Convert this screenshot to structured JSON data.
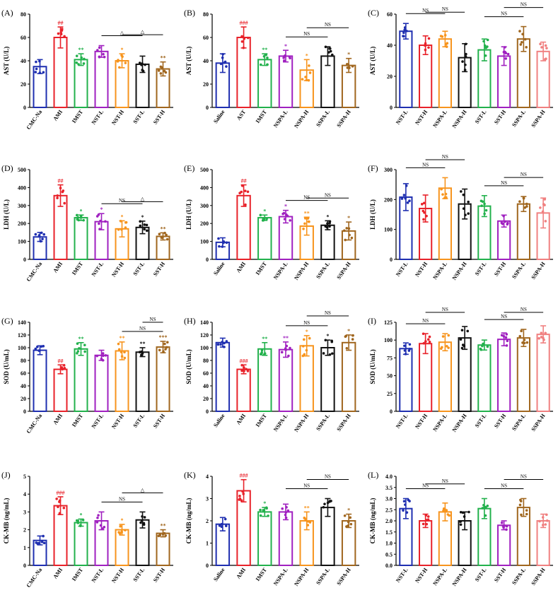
{
  "colors": {
    "blue": "#1f2fb0",
    "red": "#e8222a",
    "green": "#22b14c",
    "purple": "#a020c0",
    "orange": "#f7941d",
    "black": "#111111",
    "brown": "#a0661e",
    "pink": "#f08080"
  },
  "chart_data": [
    {
      "id": "A",
      "type": "bar",
      "label": "(A)",
      "ylabel": "AST (U/L)",
      "ylim": [
        0,
        80
      ],
      "yticks": [
        0,
        20,
        40,
        60,
        80
      ],
      "categories": [
        "CMC-Na",
        "AMI",
        "IMST",
        "NST-L",
        "NST-H",
        "SST-L",
        "SST-H"
      ],
      "colors": [
        "blue",
        "red",
        "green",
        "purple",
        "orange",
        "black",
        "brown"
      ],
      "values": [
        35,
        60,
        41,
        48,
        40,
        37,
        33
      ],
      "errors": [
        6,
        9,
        5,
        5,
        6,
        7,
        6
      ],
      "sig": [
        "",
        "##",
        "**",
        "",
        "*",
        "",
        "**"
      ],
      "brackets": [
        {
          "from": 4,
          "to": 6,
          "text": "△",
          "level": 1
        },
        {
          "from": 3,
          "to": 5,
          "text": "△",
          "level": 0
        }
      ]
    },
    {
      "id": "B",
      "type": "bar",
      "label": "(B)",
      "ylabel": "AST (U/L)",
      "ylim": [
        0,
        80
      ],
      "yticks": [
        0,
        20,
        40,
        60,
        80
      ],
      "categories": [
        "Saline",
        "AST",
        "IMST",
        "NSPA-L",
        "NSPA-H",
        "SSPA-L",
        "SSPA-H"
      ],
      "colors": [
        "blue",
        "red",
        "green",
        "purple",
        "orange",
        "black",
        "brown"
      ],
      "values": [
        38,
        60,
        41,
        44,
        32,
        44,
        36
      ],
      "errors": [
        8,
        9,
        5,
        5,
        9,
        8,
        6
      ],
      "sig": [
        "",
        "###",
        "**",
        "*",
        "*",
        "",
        "*"
      ],
      "brackets": [
        {
          "from": 3,
          "to": 5,
          "text": "NS",
          "level": 0
        },
        {
          "from": 4,
          "to": 6,
          "text": "NS",
          "level": 1
        }
      ]
    },
    {
      "id": "C",
      "type": "bar",
      "label": "(C)",
      "ylabel": "AST (U/L)",
      "ylim": [
        0,
        60
      ],
      "yticks": [
        0,
        20,
        40,
        60
      ],
      "categories": [
        "NST-L",
        "NST-H",
        "NSPA-L",
        "NSPA-H",
        "SST-L",
        "SST-H",
        "SSPA-L",
        "SSPA-H"
      ],
      "colors": [
        "blue",
        "red",
        "orange",
        "black",
        "green",
        "purple",
        "brown",
        "pink"
      ],
      "values": [
        49,
        40,
        44,
        32,
        37,
        33,
        44,
        36
      ],
      "errors": [
        5,
        6,
        5,
        9,
        7,
        6,
        8,
        6
      ],
      "sig": [
        "",
        "",
        "",
        "",
        "",
        "",
        "",
        ""
      ],
      "brackets": [
        {
          "from": 0,
          "to": 2,
          "text": "NS",
          "level": 0
        },
        {
          "from": 1,
          "to": 3,
          "text": "NS",
          "level": 1
        },
        {
          "from": 4,
          "to": 6,
          "text": "NS",
          "level": 0
        },
        {
          "from": 5,
          "to": 7,
          "text": "NS",
          "level": 1
        }
      ]
    },
    {
      "id": "D",
      "type": "bar",
      "label": "(D)",
      "ylabel": "LDH (U/L)",
      "ylim": [
        0,
        500
      ],
      "yticks": [
        0,
        100,
        200,
        300,
        400,
        500
      ],
      "categories": [
        "CMC-Na",
        "AMI",
        "IMST",
        "NST-L",
        "NST-H",
        "SST-L",
        "SST-H"
      ],
      "colors": [
        "blue",
        "red",
        "green",
        "purple",
        "orange",
        "black",
        "brown"
      ],
      "values": [
        125,
        355,
        232,
        210,
        170,
        178,
        128
      ],
      "errors": [
        25,
        60,
        15,
        45,
        45,
        35,
        20
      ],
      "sig": [
        "",
        "##",
        "*",
        "*",
        "*",
        "*",
        "**"
      ],
      "brackets": [
        {
          "from": 3,
          "to": 5,
          "text": "NS",
          "level": 0
        },
        {
          "from": 4,
          "to": 6,
          "text": "△",
          "level": 1
        }
      ]
    },
    {
      "id": "E",
      "type": "bar",
      "label": "(E)",
      "ylabel": "LDH (U/L)",
      "ylim": [
        0,
        500
      ],
      "yticks": [
        0,
        100,
        200,
        300,
        400,
        500
      ],
      "categories": [
        "Saline",
        "AMI",
        "IMST",
        "NSPA-L",
        "NSPA-H",
        "SSPA-L",
        "SSPA-H"
      ],
      "colors": [
        "blue",
        "red",
        "green",
        "purple",
        "orange",
        "black",
        "brown"
      ],
      "values": [
        95,
        355,
        232,
        238,
        185,
        190,
        158
      ],
      "errors": [
        25,
        60,
        15,
        35,
        50,
        25,
        50
      ],
      "sig": [
        "",
        "##",
        "*",
        "*",
        "**",
        "*",
        "*"
      ],
      "brackets": [
        {
          "from": 3,
          "to": 5,
          "text": "NS",
          "level": 0
        },
        {
          "from": 4,
          "to": 6,
          "text": "NS",
          "level": 1
        }
      ]
    },
    {
      "id": "F",
      "type": "bar",
      "label": "(F)",
      "ylabel": "LDH (U/L)",
      "ylim": [
        0,
        300
      ],
      "yticks": [
        0,
        100,
        200,
        300
      ],
      "categories": [
        "NST-L",
        "NST-H",
        "NSPA-L",
        "NSPA-H",
        "SST-L",
        "SST-H",
        "SSPA-L",
        "SSPA-H"
      ],
      "colors": [
        "blue",
        "red",
        "orange",
        "black",
        "green",
        "purple",
        "brown",
        "pink"
      ],
      "values": [
        208,
        170,
        238,
        185,
        178,
        128,
        185,
        155
      ],
      "errors": [
        45,
        45,
        35,
        50,
        35,
        20,
        25,
        50
      ],
      "sig": [
        "",
        "",
        "",
        "",
        "",
        "",
        "",
        ""
      ],
      "brackets": [
        {
          "from": 0,
          "to": 2,
          "text": "NS",
          "level": 0
        },
        {
          "from": 1,
          "to": 3,
          "text": "NS",
          "level": 1
        },
        {
          "from": 4,
          "to": 6,
          "text": "NS",
          "level": 0
        },
        {
          "from": 5,
          "to": 7,
          "text": "NS",
          "level": 1
        }
      ]
    },
    {
      "id": "G",
      "type": "bar",
      "label": "(G)",
      "ylabel": "SOD (U/mL)",
      "ylim": [
        0,
        140
      ],
      "yticks": [
        0,
        20,
        40,
        60,
        80,
        100,
        120,
        140
      ],
      "categories": [
        "CMC-Na",
        "AMI",
        "IMST",
        "NST-L",
        "NST-H",
        "SST-L",
        "SST-H"
      ],
      "colors": [
        "blue",
        "red",
        "green",
        "purple",
        "orange",
        "black",
        "brown"
      ],
      "values": [
        96,
        66,
        98,
        88,
        95,
        93,
        101
      ],
      "errors": [
        7,
        7,
        10,
        8,
        14,
        7,
        9
      ],
      "sig": [
        "",
        "##",
        "**",
        "",
        "**",
        "**",
        "***"
      ],
      "brackets": [
        {
          "from": 4,
          "to": 6,
          "text": "NS",
          "level": 0
        },
        {
          "from": 5,
          "to": 6,
          "text": "NS",
          "level": 1
        }
      ]
    },
    {
      "id": "H",
      "type": "bar",
      "label": "(H)",
      "ylabel": "SOD (U/mL)",
      "ylim": [
        0,
        140
      ],
      "yticks": [
        0,
        20,
        40,
        60,
        80,
        100,
        120,
        140
      ],
      "categories": [
        "Saline",
        "AMI",
        "IMST",
        "NSPA-L",
        "NSPA-H",
        "SSPA-L",
        "SSPA-H"
      ],
      "colors": [
        "blue",
        "red",
        "green",
        "purple",
        "orange",
        "black",
        "brown"
      ],
      "values": [
        108,
        66,
        98,
        97,
        103,
        100,
        108
      ],
      "errors": [
        7,
        7,
        10,
        12,
        16,
        12,
        12
      ],
      "sig": [
        "",
        "###",
        "**",
        "**",
        "*",
        "*",
        "*"
      ],
      "brackets": [
        {
          "from": 3,
          "to": 5,
          "text": "NS",
          "level": 0
        },
        {
          "from": 4,
          "to": 6,
          "text": "NS",
          "level": 1
        }
      ]
    },
    {
      "id": "I",
      "type": "bar",
      "label": "(I)",
      "ylabel": "SOD (U/mL)",
      "ylim": [
        0,
        125
      ],
      "yticks": [
        0,
        25,
        50,
        75,
        100,
        125
      ],
      "categories": [
        "NST-L",
        "NST-H",
        "NSPA-L",
        "NSPA-H",
        "SST-L",
        "SST-H",
        "SSPA-L",
        "SSPA-H"
      ],
      "colors": [
        "blue",
        "red",
        "orange",
        "black",
        "green",
        "purple",
        "brown",
        "pink"
      ],
      "values": [
        88,
        95,
        97,
        103,
        93,
        101,
        103,
        108
      ],
      "errors": [
        8,
        14,
        12,
        16,
        7,
        9,
        12,
        12
      ],
      "sig": [
        "",
        "",
        "",
        "",
        "",
        "",
        "",
        ""
      ],
      "brackets": [
        {
          "from": 0,
          "to": 2,
          "text": "NS",
          "level": 0
        },
        {
          "from": 1,
          "to": 3,
          "text": "NS",
          "level": 1
        },
        {
          "from": 4,
          "to": 6,
          "text": "NS",
          "level": 0
        },
        {
          "from": 5,
          "to": 7,
          "text": "NS",
          "level": 1
        }
      ]
    },
    {
      "id": "J",
      "type": "bar",
      "label": "(J)",
      "ylabel": "CK-MB (ng/mL)",
      "ylim": [
        0,
        5
      ],
      "yticks": [
        0,
        1,
        2,
        3,
        4,
        5
      ],
      "categories": [
        "CMC-Na",
        "AMI",
        "IMST",
        "NST-L",
        "NST-H",
        "SST-L",
        "SST-H"
      ],
      "colors": [
        "blue",
        "red",
        "green",
        "purple",
        "orange",
        "black",
        "brown"
      ],
      "values": [
        1.4,
        3.35,
        2.4,
        2.5,
        2.0,
        2.55,
        1.8
      ],
      "errors": [
        0.25,
        0.5,
        0.2,
        0.5,
        0.3,
        0.45,
        0.2
      ],
      "sig": [
        "",
        "###",
        "*",
        "",
        "*",
        "",
        "**"
      ],
      "brackets": [
        {
          "from": 3,
          "to": 5,
          "text": "NS",
          "level": 0
        },
        {
          "from": 4,
          "to": 6,
          "text": "△",
          "level": 1
        }
      ]
    },
    {
      "id": "K",
      "type": "bar",
      "label": "(K)",
      "ylabel": "CK-MB (ng/mL)",
      "ylim": [
        0,
        4
      ],
      "yticks": [
        0,
        1,
        2,
        3,
        4
      ],
      "categories": [
        "Saline",
        "AMI",
        "IMST",
        "NSPA-L",
        "NSPA-H",
        "SSPA-L",
        "SSPA-H"
      ],
      "colors": [
        "blue",
        "red",
        "green",
        "purple",
        "orange",
        "black",
        "brown"
      ],
      "values": [
        1.85,
        3.35,
        2.4,
        2.4,
        2.0,
        2.6,
        2.0
      ],
      "errors": [
        0.3,
        0.5,
        0.2,
        0.35,
        0.4,
        0.4,
        0.3
      ],
      "sig": [
        "",
        "###",
        "*",
        "",
        "**",
        "",
        "*"
      ],
      "brackets": [
        {
          "from": 3,
          "to": 5,
          "text": "NS",
          "level": 0
        },
        {
          "from": 4,
          "to": 6,
          "text": "NS",
          "level": 1
        }
      ]
    },
    {
      "id": "L",
      "type": "bar",
      "label": "(L)",
      "ylabel": "CK-MB (ng/mL)",
      "ylim": [
        0,
        4
      ],
      "yticks": [
        0.0,
        0.5,
        1.0,
        1.5,
        2.0,
        2.5,
        3.0,
        3.5,
        4.0
      ],
      "yticklabels": [
        "0.0",
        "0.5",
        "1.0",
        "1.5",
        "2.0",
        "2.5",
        "3.0",
        "3.5",
        "4.0"
      ],
      "categories": [
        "NST-L",
        "NST-H",
        "NSPA-L",
        "NSPA-H",
        "SST-L",
        "SST-H",
        "SSPA-L",
        "SSPA-H"
      ],
      "colors": [
        "blue",
        "red",
        "orange",
        "black",
        "green",
        "purple",
        "brown",
        "pink"
      ],
      "values": [
        2.55,
        2.0,
        2.4,
        2.0,
        2.55,
        1.8,
        2.6,
        2.0
      ],
      "errors": [
        0.45,
        0.3,
        0.4,
        0.4,
        0.45,
        0.2,
        0.4,
        0.3
      ],
      "sig": [
        "",
        "",
        "",
        "",
        "",
        "",
        "",
        ""
      ],
      "brackets": [
        {
          "from": 0,
          "to": 2,
          "text": "NS",
          "level": 0
        },
        {
          "from": 1,
          "to": 3,
          "text": "NS",
          "level": 1
        },
        {
          "from": 4,
          "to": 6,
          "text": "NS",
          "level": 0
        },
        {
          "from": 5,
          "to": 7,
          "text": "NS",
          "level": 1
        }
      ]
    }
  ]
}
